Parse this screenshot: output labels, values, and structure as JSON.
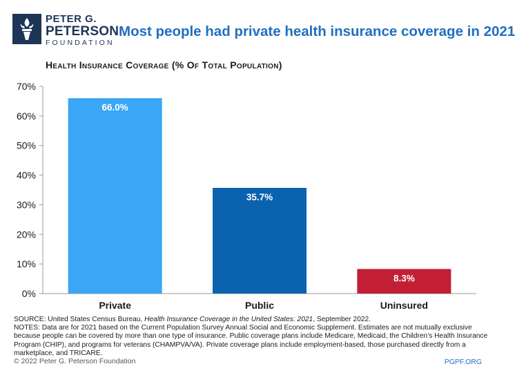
{
  "logo": {
    "line1": "PETER G.",
    "line2": "PETERSON",
    "line3": "FOUNDATION"
  },
  "headline": "Most people had private health insurance coverage in 2021",
  "chart_data": {
    "type": "bar",
    "title": "Health Insurance Coverage (% Of Total Population)",
    "categories": [
      "Private",
      "Public",
      "Uninsured"
    ],
    "values": [
      66.0,
      35.7,
      8.3
    ],
    "value_labels": [
      "66.0%",
      "35.7%",
      "8.3%"
    ],
    "colors": [
      "#3aa6f5",
      "#0b63b0",
      "#c21f34"
    ],
    "ylim": [
      0,
      70
    ],
    "yticks": [
      0,
      10,
      20,
      30,
      40,
      50,
      60,
      70
    ],
    "ytick_labels": [
      "0%",
      "10%",
      "20%",
      "30%",
      "40%",
      "50%",
      "60%",
      "70%"
    ],
    "xlabel": "",
    "ylabel": "",
    "grid": false
  },
  "notes": {
    "source_prefix": "SOURCE: United States Census Bureau, ",
    "source_title": "Health Insurance Coverage in the United States: 2021",
    "source_suffix": ", September 2022.",
    "notes_text": "NOTES: Data are for 2021 based on the Current Population Survey Annual Social and Economic Supplement. Estimates are not mutually exclusive because people can be covered by more than one type of insurance. Public coverage plans include Medicare, Medicaid, the Children’s Health Insurance Program (CHIP), and programs for veterans (CHAMPVA/VA). Private coverage plans include employment-based, those purchased directly from a marketplace, and TRICARE."
  },
  "footer": {
    "copyright": "© 2022 Peter G. Peterson Foundation",
    "site": "PGPF.ORG"
  }
}
